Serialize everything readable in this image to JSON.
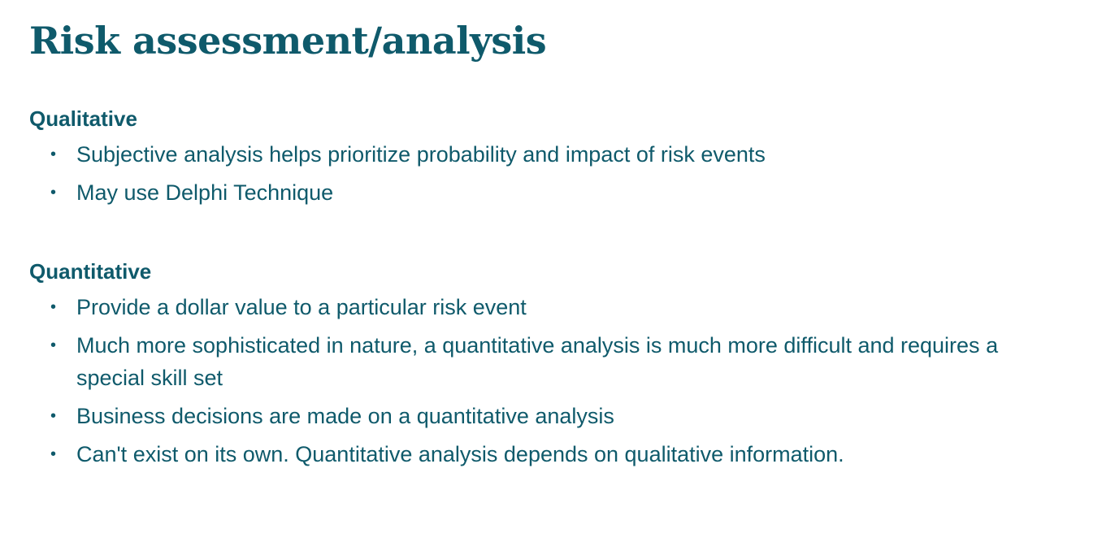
{
  "slide": {
    "title": "Risk assessment/analysis",
    "sections": [
      {
        "heading": "Qualitative",
        "bullets": [
          "Subjective analysis helps prioritize probability and impact of risk events",
          "May use Delphi Technique"
        ]
      },
      {
        "heading": "Quantitative",
        "bullets": [
          "Provide a dollar value to a particular risk event",
          "Much more sophisticated in nature, a quantitative analysis is much more difficult and requires a special skill set",
          "Business decisions are made on a quantitative analysis",
          "Can't exist on its own. Quantitative analysis depends on qualitative information."
        ]
      }
    ]
  },
  "colors": {
    "text": "#0f5a6b",
    "background": "#ffffff"
  }
}
